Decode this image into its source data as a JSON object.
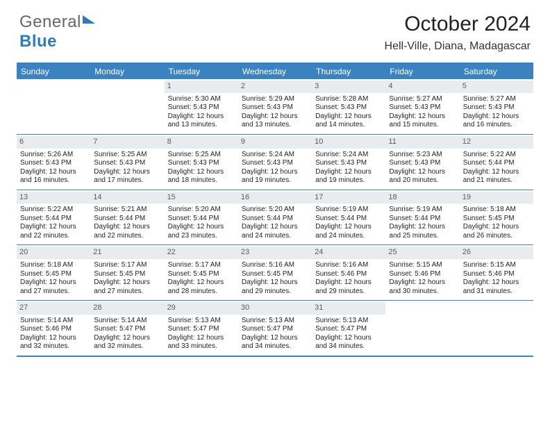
{
  "logo": {
    "part1": "General",
    "part2": "Blue"
  },
  "title": "October 2024",
  "location": "Hell-Ville, Diana, Madagascar",
  "day_labels": [
    "Sunday",
    "Monday",
    "Tuesday",
    "Wednesday",
    "Thursday",
    "Friday",
    "Saturday"
  ],
  "weeks": [
    [
      null,
      null,
      {
        "n": "1",
        "sr": "Sunrise: 5:30 AM",
        "ss": "Sunset: 5:43 PM",
        "d1": "Daylight: 12 hours",
        "d2": "and 13 minutes."
      },
      {
        "n": "2",
        "sr": "Sunrise: 5:29 AM",
        "ss": "Sunset: 5:43 PM",
        "d1": "Daylight: 12 hours",
        "d2": "and 13 minutes."
      },
      {
        "n": "3",
        "sr": "Sunrise: 5:28 AM",
        "ss": "Sunset: 5:43 PM",
        "d1": "Daylight: 12 hours",
        "d2": "and 14 minutes."
      },
      {
        "n": "4",
        "sr": "Sunrise: 5:27 AM",
        "ss": "Sunset: 5:43 PM",
        "d1": "Daylight: 12 hours",
        "d2": "and 15 minutes."
      },
      {
        "n": "5",
        "sr": "Sunrise: 5:27 AM",
        "ss": "Sunset: 5:43 PM",
        "d1": "Daylight: 12 hours",
        "d2": "and 16 minutes."
      }
    ],
    [
      {
        "n": "6",
        "sr": "Sunrise: 5:26 AM",
        "ss": "Sunset: 5:43 PM",
        "d1": "Daylight: 12 hours",
        "d2": "and 16 minutes."
      },
      {
        "n": "7",
        "sr": "Sunrise: 5:25 AM",
        "ss": "Sunset: 5:43 PM",
        "d1": "Daylight: 12 hours",
        "d2": "and 17 minutes."
      },
      {
        "n": "8",
        "sr": "Sunrise: 5:25 AM",
        "ss": "Sunset: 5:43 PM",
        "d1": "Daylight: 12 hours",
        "d2": "and 18 minutes."
      },
      {
        "n": "9",
        "sr": "Sunrise: 5:24 AM",
        "ss": "Sunset: 5:43 PM",
        "d1": "Daylight: 12 hours",
        "d2": "and 19 minutes."
      },
      {
        "n": "10",
        "sr": "Sunrise: 5:24 AM",
        "ss": "Sunset: 5:43 PM",
        "d1": "Daylight: 12 hours",
        "d2": "and 19 minutes."
      },
      {
        "n": "11",
        "sr": "Sunrise: 5:23 AM",
        "ss": "Sunset: 5:43 PM",
        "d1": "Daylight: 12 hours",
        "d2": "and 20 minutes."
      },
      {
        "n": "12",
        "sr": "Sunrise: 5:22 AM",
        "ss": "Sunset: 5:44 PM",
        "d1": "Daylight: 12 hours",
        "d2": "and 21 minutes."
      }
    ],
    [
      {
        "n": "13",
        "sr": "Sunrise: 5:22 AM",
        "ss": "Sunset: 5:44 PM",
        "d1": "Daylight: 12 hours",
        "d2": "and 22 minutes."
      },
      {
        "n": "14",
        "sr": "Sunrise: 5:21 AM",
        "ss": "Sunset: 5:44 PM",
        "d1": "Daylight: 12 hours",
        "d2": "and 22 minutes."
      },
      {
        "n": "15",
        "sr": "Sunrise: 5:20 AM",
        "ss": "Sunset: 5:44 PM",
        "d1": "Daylight: 12 hours",
        "d2": "and 23 minutes."
      },
      {
        "n": "16",
        "sr": "Sunrise: 5:20 AM",
        "ss": "Sunset: 5:44 PM",
        "d1": "Daylight: 12 hours",
        "d2": "and 24 minutes."
      },
      {
        "n": "17",
        "sr": "Sunrise: 5:19 AM",
        "ss": "Sunset: 5:44 PM",
        "d1": "Daylight: 12 hours",
        "d2": "and 24 minutes."
      },
      {
        "n": "18",
        "sr": "Sunrise: 5:19 AM",
        "ss": "Sunset: 5:44 PM",
        "d1": "Daylight: 12 hours",
        "d2": "and 25 minutes."
      },
      {
        "n": "19",
        "sr": "Sunrise: 5:18 AM",
        "ss": "Sunset: 5:45 PM",
        "d1": "Daylight: 12 hours",
        "d2": "and 26 minutes."
      }
    ],
    [
      {
        "n": "20",
        "sr": "Sunrise: 5:18 AM",
        "ss": "Sunset: 5:45 PM",
        "d1": "Daylight: 12 hours",
        "d2": "and 27 minutes."
      },
      {
        "n": "21",
        "sr": "Sunrise: 5:17 AM",
        "ss": "Sunset: 5:45 PM",
        "d1": "Daylight: 12 hours",
        "d2": "and 27 minutes."
      },
      {
        "n": "22",
        "sr": "Sunrise: 5:17 AM",
        "ss": "Sunset: 5:45 PM",
        "d1": "Daylight: 12 hours",
        "d2": "and 28 minutes."
      },
      {
        "n": "23",
        "sr": "Sunrise: 5:16 AM",
        "ss": "Sunset: 5:45 PM",
        "d1": "Daylight: 12 hours",
        "d2": "and 29 minutes."
      },
      {
        "n": "24",
        "sr": "Sunrise: 5:16 AM",
        "ss": "Sunset: 5:46 PM",
        "d1": "Daylight: 12 hours",
        "d2": "and 29 minutes."
      },
      {
        "n": "25",
        "sr": "Sunrise: 5:15 AM",
        "ss": "Sunset: 5:46 PM",
        "d1": "Daylight: 12 hours",
        "d2": "and 30 minutes."
      },
      {
        "n": "26",
        "sr": "Sunrise: 5:15 AM",
        "ss": "Sunset: 5:46 PM",
        "d1": "Daylight: 12 hours",
        "d2": "and 31 minutes."
      }
    ],
    [
      {
        "n": "27",
        "sr": "Sunrise: 5:14 AM",
        "ss": "Sunset: 5:46 PM",
        "d1": "Daylight: 12 hours",
        "d2": "and 32 minutes."
      },
      {
        "n": "28",
        "sr": "Sunrise: 5:14 AM",
        "ss": "Sunset: 5:47 PM",
        "d1": "Daylight: 12 hours",
        "d2": "and 32 minutes."
      },
      {
        "n": "29",
        "sr": "Sunrise: 5:13 AM",
        "ss": "Sunset: 5:47 PM",
        "d1": "Daylight: 12 hours",
        "d2": "and 33 minutes."
      },
      {
        "n": "30",
        "sr": "Sunrise: 5:13 AM",
        "ss": "Sunset: 5:47 PM",
        "d1": "Daylight: 12 hours",
        "d2": "and 34 minutes."
      },
      {
        "n": "31",
        "sr": "Sunrise: 5:13 AM",
        "ss": "Sunset: 5:47 PM",
        "d1": "Daylight: 12 hours",
        "d2": "and 34 minutes."
      },
      null,
      null
    ]
  ]
}
